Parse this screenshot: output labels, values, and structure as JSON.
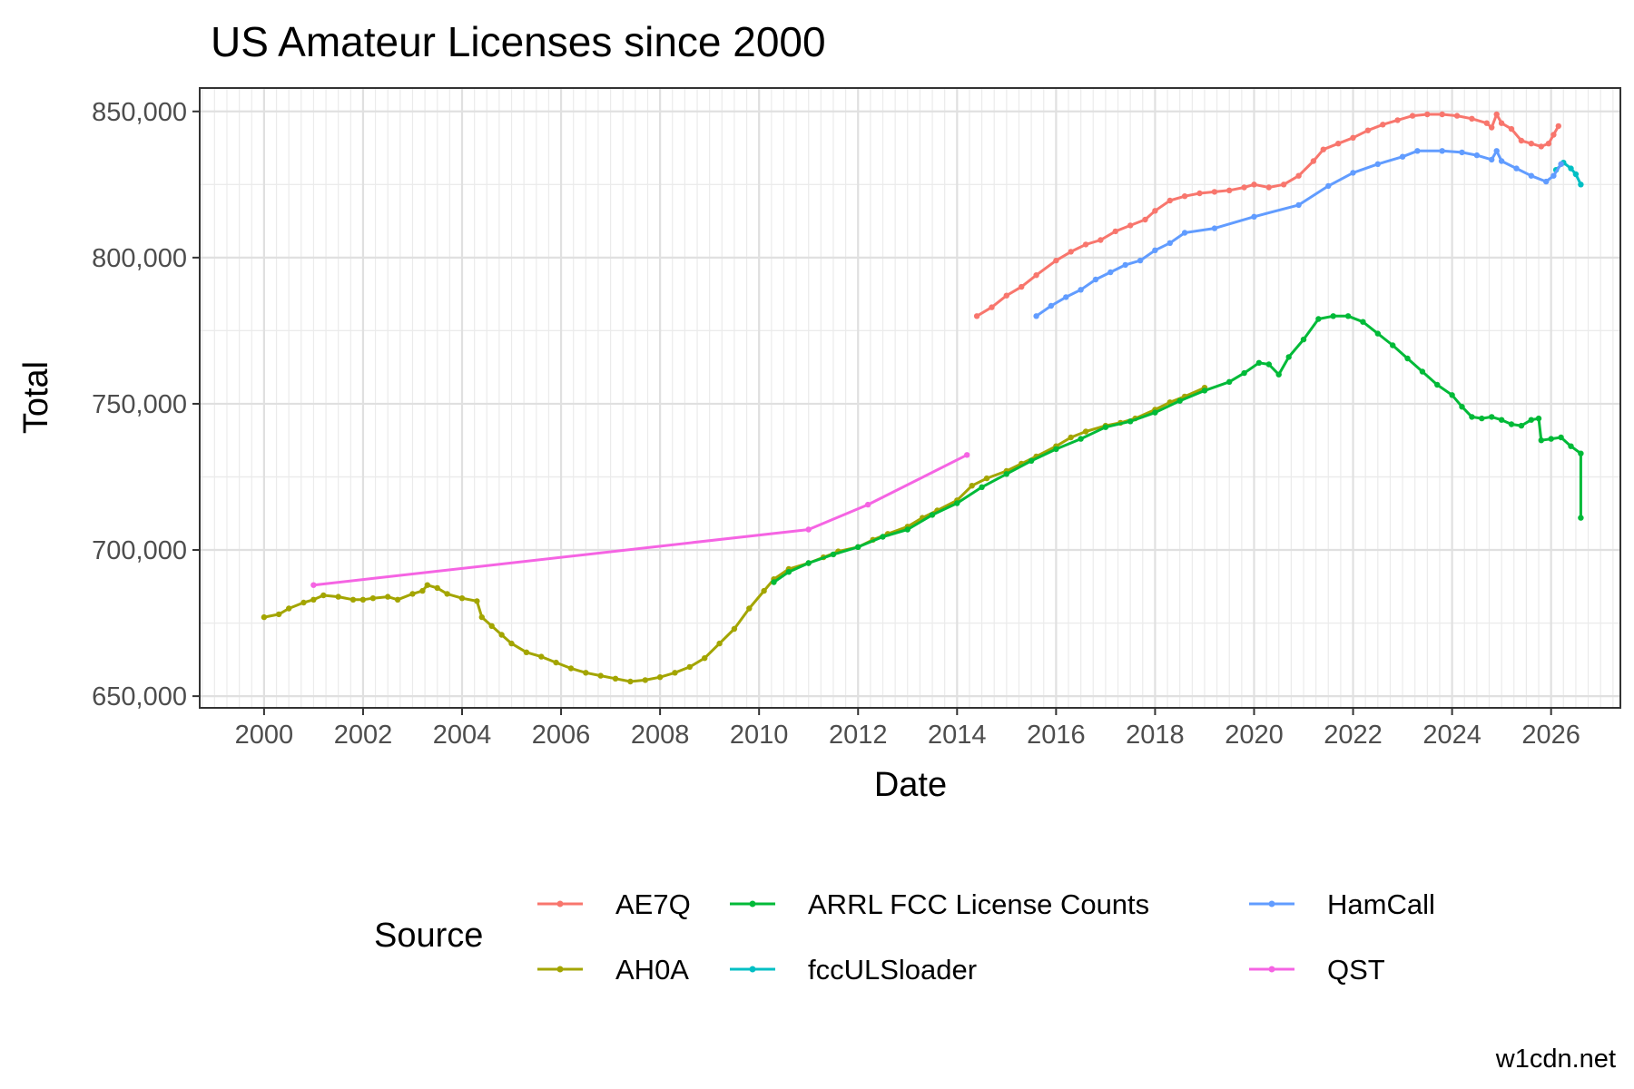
{
  "chart_data": {
    "type": "line",
    "title": "US Amateur Licenses since 2000",
    "xlabel": "Date",
    "ylabel": "Total",
    "xlim": [
      1998.7,
      2027.4
    ],
    "ylim": [
      646000,
      858000
    ],
    "x_ticks": [
      2000,
      2002,
      2004,
      2006,
      2008,
      2010,
      2012,
      2014,
      2016,
      2018,
      2020,
      2022,
      2024,
      2026
    ],
    "x_tick_labels": [
      "2000",
      "2002",
      "2004",
      "2006",
      "2008",
      "2010",
      "2012",
      "2014",
      "2016",
      "2018",
      "2020",
      "2022",
      "2024",
      "2026"
    ],
    "y_ticks": [
      650000,
      700000,
      750000,
      800000,
      850000
    ],
    "y_tick_labels": [
      "650,000",
      "700,000",
      "750,000",
      "800,000",
      "850,000"
    ],
    "grid": true,
    "legend": {
      "title": "Source",
      "position": "bottom",
      "layout": "2 rows x 3 columns",
      "order": [
        "AE7Q",
        "AH0A",
        "ARRL FCC License Counts",
        "fccULSloader",
        "HamCall",
        "QST"
      ]
    },
    "series": [
      {
        "name": "AE7Q",
        "color": "#F8766D",
        "points": [
          [
            2014.4,
            780000
          ],
          [
            2014.7,
            783000
          ],
          [
            2015.0,
            787000
          ],
          [
            2015.3,
            790000
          ],
          [
            2015.6,
            794000
          ],
          [
            2016.0,
            799000
          ],
          [
            2016.3,
            802000
          ],
          [
            2016.6,
            804500
          ],
          [
            2016.9,
            806000
          ],
          [
            2017.2,
            809000
          ],
          [
            2017.5,
            811000
          ],
          [
            2017.8,
            813000
          ],
          [
            2018.0,
            816000
          ],
          [
            2018.3,
            819500
          ],
          [
            2018.6,
            821000
          ],
          [
            2018.9,
            822000
          ],
          [
            2019.2,
            822500
          ],
          [
            2019.5,
            823000
          ],
          [
            2019.8,
            824000
          ],
          [
            2020.0,
            825000
          ],
          [
            2020.3,
            824000
          ],
          [
            2020.6,
            825000
          ],
          [
            2020.9,
            828000
          ],
          [
            2021.2,
            833000
          ],
          [
            2021.4,
            837000
          ],
          [
            2021.7,
            839000
          ],
          [
            2022.0,
            841000
          ],
          [
            2022.3,
            843500
          ],
          [
            2022.6,
            845500
          ],
          [
            2022.9,
            847000
          ],
          [
            2023.2,
            848500
          ],
          [
            2023.5,
            849000
          ],
          [
            2023.8,
            849000
          ],
          [
            2024.1,
            848500
          ],
          [
            2024.4,
            847500
          ],
          [
            2024.7,
            846000
          ],
          [
            2024.8,
            844500
          ],
          [
            2024.9,
            849000
          ],
          [
            2025.0,
            846000
          ],
          [
            2025.2,
            844000
          ],
          [
            2025.4,
            840000
          ],
          [
            2025.6,
            839000
          ],
          [
            2025.8,
            838000
          ],
          [
            2025.95,
            839000
          ],
          [
            2026.05,
            842000
          ],
          [
            2026.15,
            845000
          ]
        ]
      },
      {
        "name": "AH0A",
        "color": "#A3A500",
        "points": [
          [
            2000.0,
            677000
          ],
          [
            2000.3,
            678000
          ],
          [
            2000.5,
            680000
          ],
          [
            2000.8,
            682000
          ],
          [
            2001.0,
            683000
          ],
          [
            2001.2,
            684500
          ],
          [
            2001.5,
            684000
          ],
          [
            2001.8,
            683000
          ],
          [
            2002.0,
            683000
          ],
          [
            2002.2,
            683500
          ],
          [
            2002.5,
            684000
          ],
          [
            2002.7,
            683000
          ],
          [
            2003.0,
            685000
          ],
          [
            2003.2,
            686000
          ],
          [
            2003.3,
            688000
          ],
          [
            2003.5,
            687000
          ],
          [
            2003.7,
            685000
          ],
          [
            2004.0,
            683500
          ],
          [
            2004.3,
            682500
          ],
          [
            2004.4,
            677000
          ],
          [
            2004.6,
            674000
          ],
          [
            2004.8,
            671000
          ],
          [
            2005.0,
            668000
          ],
          [
            2005.3,
            665000
          ],
          [
            2005.6,
            663500
          ],
          [
            2005.9,
            661500
          ],
          [
            2006.2,
            659500
          ],
          [
            2006.5,
            658000
          ],
          [
            2006.8,
            657000
          ],
          [
            2007.1,
            656000
          ],
          [
            2007.4,
            655000
          ],
          [
            2007.7,
            655500
          ],
          [
            2008.0,
            656500
          ],
          [
            2008.3,
            658000
          ],
          [
            2008.6,
            660000
          ],
          [
            2008.9,
            663000
          ],
          [
            2009.2,
            668000
          ],
          [
            2009.5,
            673000
          ],
          [
            2009.8,
            680000
          ],
          [
            2010.1,
            686000
          ],
          [
            2010.3,
            690000
          ],
          [
            2010.6,
            693500
          ],
          [
            2011.0,
            695500
          ],
          [
            2011.3,
            697500
          ],
          [
            2011.6,
            699500
          ],
          [
            2012.0,
            701000
          ],
          [
            2012.3,
            703500
          ],
          [
            2012.6,
            705500
          ],
          [
            2013.0,
            708000
          ],
          [
            2013.3,
            711000
          ],
          [
            2013.6,
            713500
          ],
          [
            2014.0,
            717000
          ],
          [
            2014.3,
            722000
          ],
          [
            2014.6,
            724500
          ],
          [
            2015.0,
            727000
          ],
          [
            2015.3,
            729500
          ],
          [
            2015.6,
            732000
          ],
          [
            2016.0,
            735500
          ],
          [
            2016.3,
            738500
          ],
          [
            2016.6,
            740500
          ],
          [
            2017.0,
            742500
          ],
          [
            2017.3,
            743500
          ],
          [
            2017.6,
            745000
          ],
          [
            2018.0,
            748000
          ],
          [
            2018.3,
            750500
          ],
          [
            2018.6,
            752500
          ],
          [
            2019.0,
            755500
          ]
        ]
      },
      {
        "name": "ARRL FCC License Counts",
        "color": "#00BA38",
        "points": [
          [
            2010.3,
            689000
          ],
          [
            2010.6,
            692500
          ],
          [
            2011.0,
            695500
          ],
          [
            2011.5,
            698500
          ],
          [
            2012.0,
            701000
          ],
          [
            2012.5,
            704500
          ],
          [
            2013.0,
            707000
          ],
          [
            2013.5,
            712000
          ],
          [
            2014.0,
            716000
          ],
          [
            2014.5,
            721500
          ],
          [
            2015.0,
            726000
          ],
          [
            2015.5,
            730500
          ],
          [
            2016.0,
            734500
          ],
          [
            2016.5,
            738000
          ],
          [
            2017.0,
            742000
          ],
          [
            2017.5,
            744000
          ],
          [
            2018.0,
            747000
          ],
          [
            2018.5,
            751000
          ],
          [
            2019.0,
            754500
          ],
          [
            2019.5,
            757500
          ],
          [
            2019.8,
            760500
          ],
          [
            2020.1,
            764000
          ],
          [
            2020.3,
            763500
          ],
          [
            2020.5,
            760000
          ],
          [
            2020.7,
            766000
          ],
          [
            2021.0,
            772000
          ],
          [
            2021.3,
            779000
          ],
          [
            2021.6,
            780000
          ],
          [
            2021.9,
            780000
          ],
          [
            2022.2,
            778000
          ],
          [
            2022.5,
            774000
          ],
          [
            2022.8,
            770000
          ],
          [
            2023.1,
            765500
          ],
          [
            2023.4,
            761000
          ],
          [
            2023.7,
            756500
          ],
          [
            2024.0,
            753000
          ],
          [
            2024.2,
            749000
          ],
          [
            2024.4,
            745500
          ],
          [
            2024.6,
            745000
          ],
          [
            2024.8,
            745500
          ],
          [
            2025.0,
            744500
          ],
          [
            2025.2,
            743000
          ],
          [
            2025.4,
            742500
          ],
          [
            2025.6,
            744500
          ],
          [
            2025.75,
            745000
          ],
          [
            2025.8,
            737500
          ],
          [
            2026.0,
            738000
          ],
          [
            2026.2,
            738500
          ],
          [
            2026.4,
            735500
          ],
          [
            2026.6,
            733000
          ],
          [
            2026.6,
            711000
          ]
        ]
      },
      {
        "name": "fccULSloader",
        "color": "#00BFC4",
        "points": [
          [
            2026.1,
            830000
          ],
          [
            2026.25,
            832500
          ],
          [
            2026.4,
            830500
          ],
          [
            2026.5,
            828500
          ],
          [
            2026.6,
            825000
          ]
        ]
      },
      {
        "name": "HamCall",
        "color": "#619CFF",
        "points": [
          [
            2015.6,
            780000
          ],
          [
            2015.9,
            783500
          ],
          [
            2016.2,
            786500
          ],
          [
            2016.5,
            789000
          ],
          [
            2016.8,
            792500
          ],
          [
            2017.1,
            795000
          ],
          [
            2017.4,
            797500
          ],
          [
            2017.7,
            799000
          ],
          [
            2018.0,
            802500
          ],
          [
            2018.3,
            805000
          ],
          [
            2018.6,
            808500
          ],
          [
            2019.2,
            810000
          ],
          [
            2020.0,
            814000
          ],
          [
            2020.9,
            818000
          ],
          [
            2021.5,
            824500
          ],
          [
            2022.0,
            829000
          ],
          [
            2022.5,
            832000
          ],
          [
            2023.0,
            834500
          ],
          [
            2023.3,
            836500
          ],
          [
            2023.8,
            836500
          ],
          [
            2024.2,
            836000
          ],
          [
            2024.5,
            835000
          ],
          [
            2024.8,
            833500
          ],
          [
            2024.9,
            836500
          ],
          [
            2025.0,
            833000
          ],
          [
            2025.3,
            830500
          ],
          [
            2025.6,
            828000
          ],
          [
            2025.9,
            826000
          ],
          [
            2026.05,
            828000
          ],
          [
            2026.2,
            832000
          ]
        ]
      },
      {
        "name": "QST",
        "color": "#F564E3",
        "points": [
          [
            2001.0,
            688000
          ],
          [
            2011.0,
            707000
          ],
          [
            2012.2,
            715500
          ],
          [
            2014.2,
            732500
          ]
        ]
      }
    ],
    "caption": "w1cdn.net"
  }
}
